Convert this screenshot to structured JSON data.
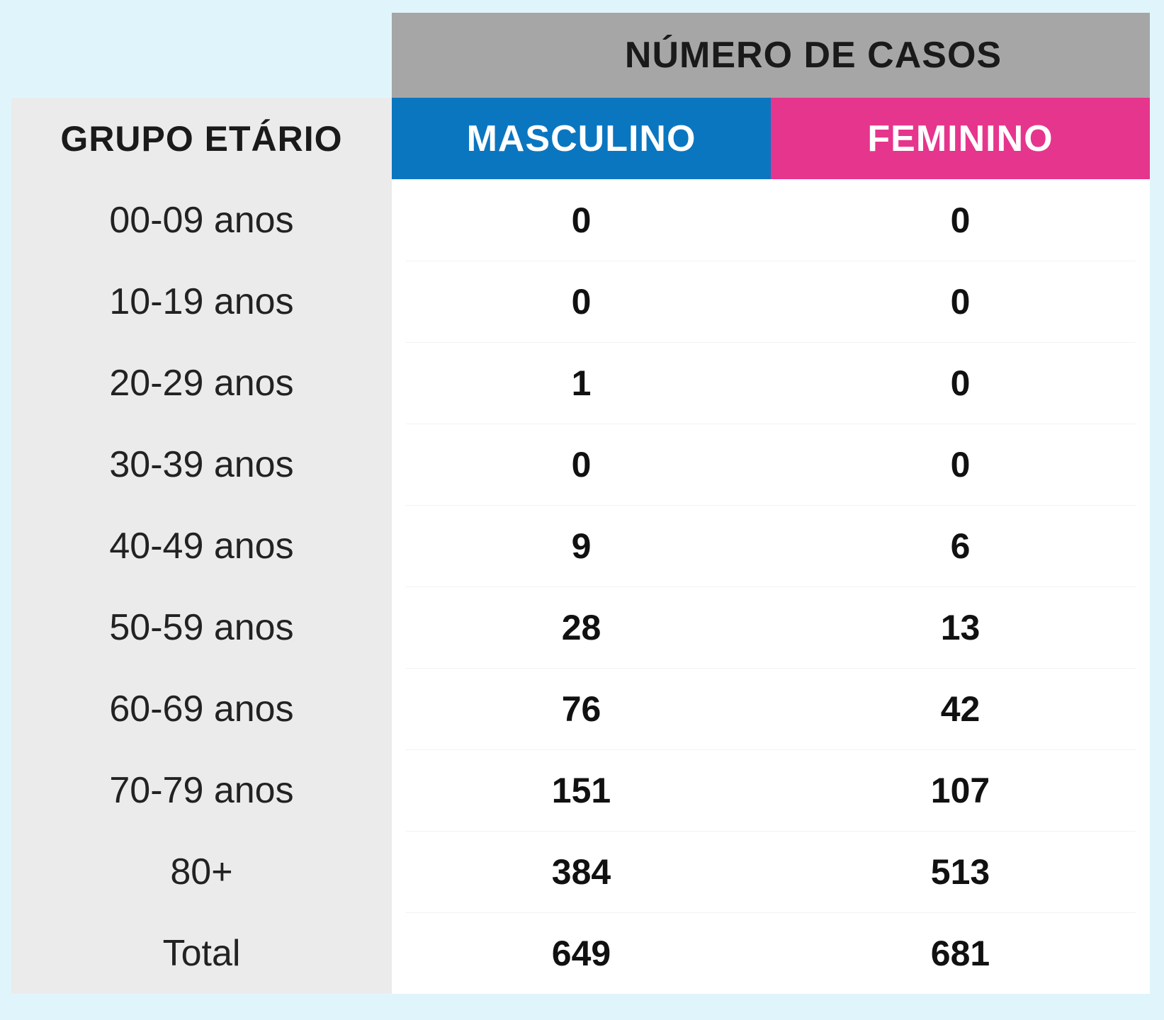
{
  "colors": {
    "page_background": "#e0f5fb",
    "super_header": "#a6a6a6",
    "male_header": "#0b76c0",
    "female_header": "#e6358d",
    "age_column": "#ebebeb",
    "data_area": "#ffffff"
  },
  "chart_data": {
    "type": "table",
    "super_header": "NÚMERO DE CASOS",
    "columns": [
      "GRUPO ETÁRIO",
      "MASCULINO",
      "FEMININO"
    ],
    "rows": [
      {
        "age": "00-09 anos",
        "male": "0",
        "female": "0"
      },
      {
        "age": "10-19 anos",
        "male": "0",
        "female": "0"
      },
      {
        "age": "20-29 anos",
        "male": "1",
        "female": "0"
      },
      {
        "age": "30-39 anos",
        "male": "0",
        "female": "0"
      },
      {
        "age": "40-49 anos",
        "male": "9",
        "female": "6"
      },
      {
        "age": "50-59 anos",
        "male": "28",
        "female": "13"
      },
      {
        "age": "60-69 anos",
        "male": "76",
        "female": "42"
      },
      {
        "age": "70-79 anos",
        "male": "151",
        "female": "107"
      },
      {
        "age": "80+",
        "male": "384",
        "female": "513"
      },
      {
        "age": "Total",
        "male": "649",
        "female": "681"
      }
    ]
  }
}
